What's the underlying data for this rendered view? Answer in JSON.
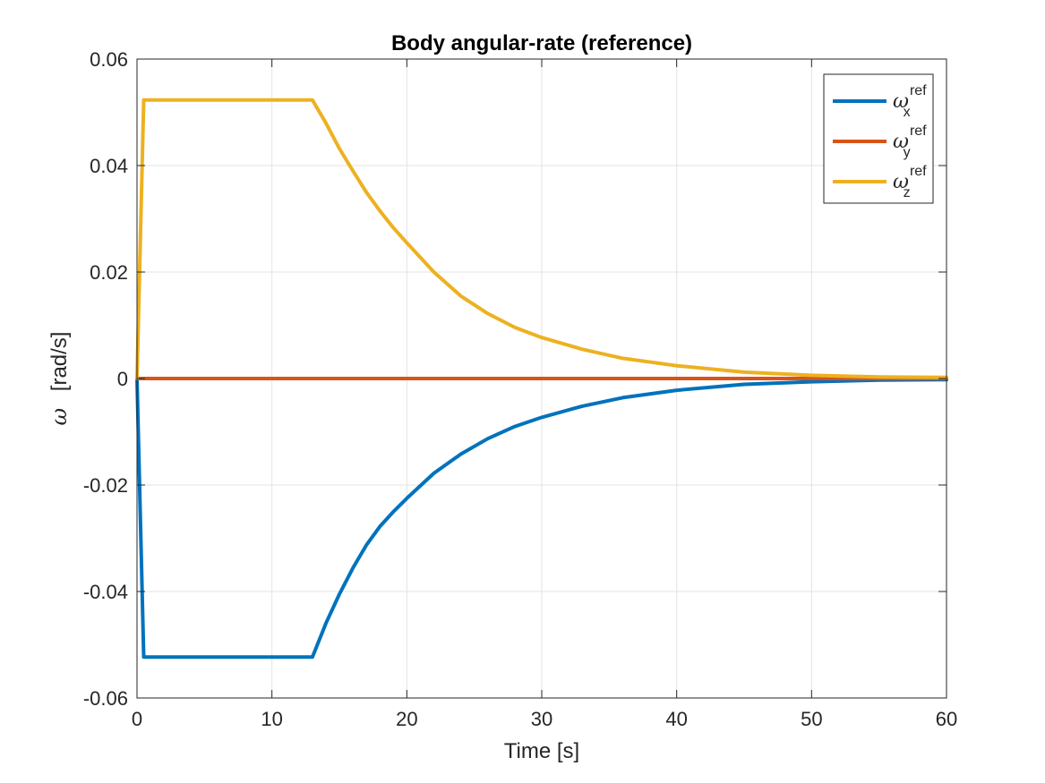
{
  "chart_data": {
    "type": "line",
    "title": "Body angular-rate (reference)",
    "xlabel": "Time [s]",
    "ylabel_symbol": "ω",
    "ylabel_unit": "[rad/s]",
    "xlim": [
      0,
      60
    ],
    "ylim": [
      -0.06,
      0.06
    ],
    "xticks": [
      0,
      10,
      20,
      30,
      40,
      50,
      60
    ],
    "xtick_labels": [
      "0",
      "10",
      "20",
      "30",
      "40",
      "50",
      "60"
    ],
    "yticks": [
      -0.06,
      -0.04,
      -0.02,
      0,
      0.02,
      0.04,
      0.06
    ],
    "ytick_labels": [
      "-0.06",
      "-0.04",
      "-0.02",
      "0",
      "0.02",
      "0.04",
      "0.06"
    ],
    "grid": true,
    "legend_position": "top-right",
    "series": [
      {
        "name": "ω_x^ref",
        "symbol": "ω",
        "superscript": "ref",
        "subscript": "x",
        "color": "#0072BD",
        "x": [
          0,
          0.5,
          13,
          14,
          15,
          16,
          17,
          18,
          19,
          20,
          22,
          24,
          26,
          28,
          30,
          33,
          36,
          40,
          45,
          50,
          55,
          60
        ],
        "y": [
          0,
          -0.0523,
          -0.0523,
          -0.046,
          -0.0405,
          -0.0356,
          -0.0313,
          -0.0278,
          -0.025,
          -0.0225,
          -0.0178,
          -0.0142,
          -0.0113,
          -0.009,
          -0.0073,
          -0.0052,
          -0.0036,
          -0.0022,
          -0.0011,
          -0.0006,
          -0.0003,
          -0.0002
        ]
      },
      {
        "name": "ω_y^ref",
        "symbol": "ω",
        "superscript": "ref",
        "subscript": "y",
        "color": "#D95319",
        "x": [
          0,
          60
        ],
        "y": [
          0,
          0
        ]
      },
      {
        "name": "ω_z^ref",
        "symbol": "ω",
        "superscript": "ref",
        "subscript": "z",
        "color": "#EDB120",
        "x": [
          0,
          0.5,
          13,
          14,
          15,
          16,
          17,
          18,
          19,
          20,
          22,
          24,
          26,
          28,
          30,
          33,
          36,
          40,
          45,
          50,
          55,
          60
        ],
        "y": [
          0,
          0.0523,
          0.0523,
          0.048,
          0.0432,
          0.039,
          0.035,
          0.0315,
          0.0283,
          0.0255,
          0.02,
          0.0155,
          0.0122,
          0.0096,
          0.0077,
          0.0055,
          0.0038,
          0.0024,
          0.0012,
          0.0006,
          0.0003,
          0.0002
        ]
      }
    ]
  }
}
